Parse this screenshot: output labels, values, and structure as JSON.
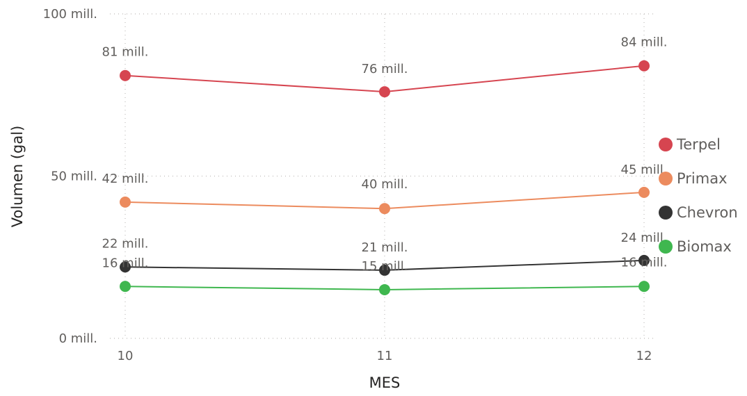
{
  "chart_data": {
    "type": "line",
    "xlabel": "MES",
    "ylabel": "Volumen (gal)",
    "x": [
      "10",
      "11",
      "12"
    ],
    "ylim": [
      0,
      100
    ],
    "yticks": [
      {
        "value": 0,
        "label": "0 mill."
      },
      {
        "value": 50,
        "label": "50 mill."
      },
      {
        "value": 100,
        "label": "100 mill."
      }
    ],
    "grid": true,
    "legend_position": "right",
    "series": [
      {
        "name": "Terpel",
        "color": "#d64550",
        "values": [
          81,
          76,
          84
        ],
        "labels": [
          "81 mill.",
          "76 mill.",
          "84 mill."
        ]
      },
      {
        "name": "Primax",
        "color": "#ec8b5e",
        "values": [
          42,
          40,
          45
        ],
        "labels": [
          "42 mill.",
          "40 mill.",
          "45 mill."
        ]
      },
      {
        "name": "Chevron",
        "color": "#333333",
        "values": [
          22,
          21,
          24
        ],
        "labels": [
          "22 mill.",
          "21 mill.",
          "24 mill."
        ]
      },
      {
        "name": "Biomax",
        "color": "#3fb74f",
        "values": [
          16,
          15,
          16
        ],
        "labels": [
          "16 mill.",
          "15 mill.",
          "16 mill."
        ]
      }
    ]
  }
}
